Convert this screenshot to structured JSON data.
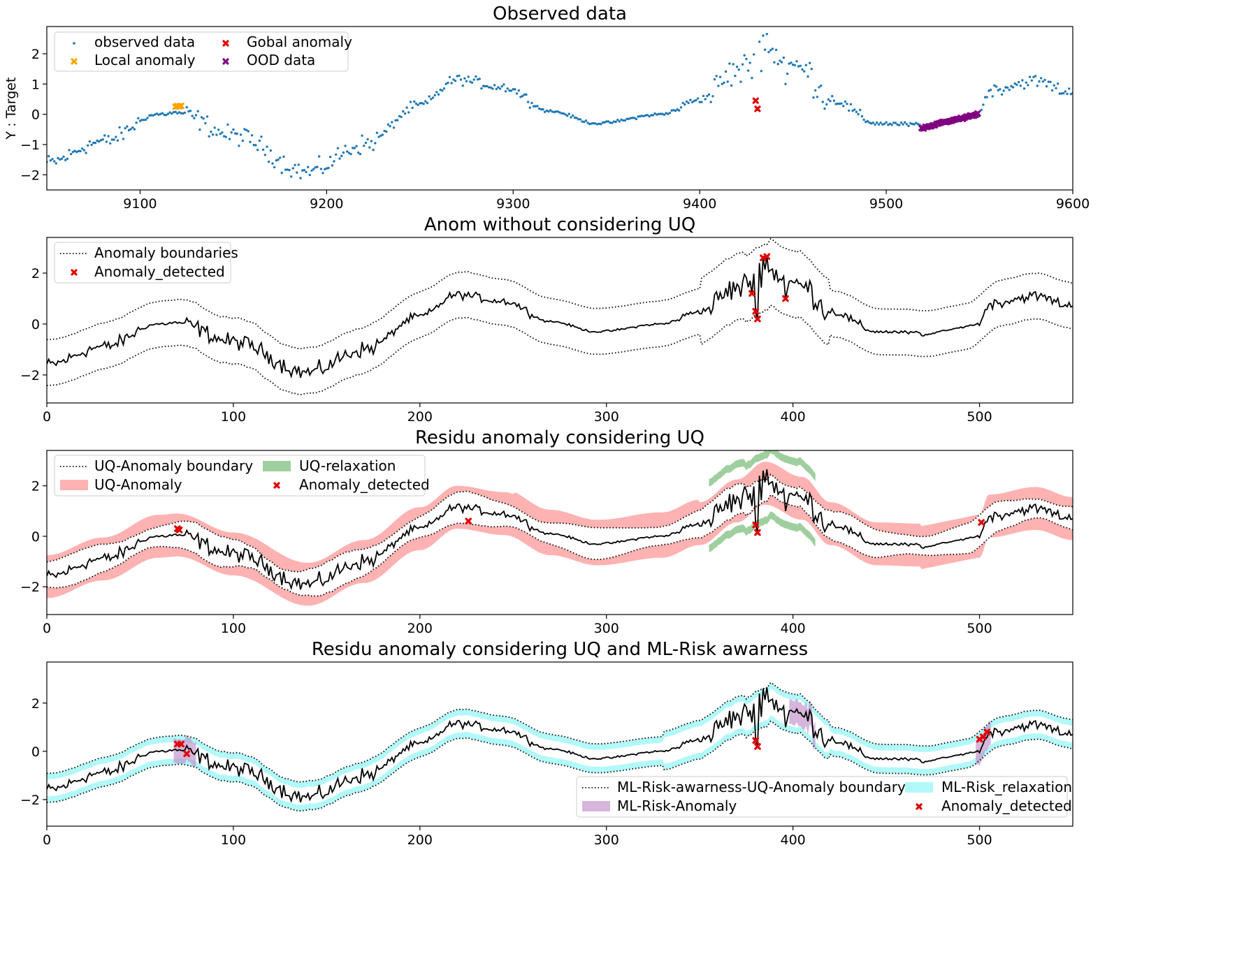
{
  "chart_data": [
    {
      "type": "scatter",
      "title": "Observed data",
      "xlabel": "",
      "ylabel": "Y : Target",
      "xlim": [
        9050,
        9600
      ],
      "ylim": [
        -2.5,
        2.9
      ],
      "xticks": [
        9100,
        9200,
        9300,
        9400,
        9500,
        9600
      ],
      "yticks": [
        -2,
        -1,
        0,
        1,
        2
      ],
      "grid": false,
      "legend_position": "upper-left",
      "legend": [
        "observed data",
        "Local anomaly",
        "Gobal anomaly",
        "OOD data"
      ],
      "signal": "damped two-frequency wave: peaks ≈ 0 at x≈9115, 1.2 at x≈9270, 2.1 at x≈9425, 0.8 at x≈9585; troughs ≈ -1.8 at x≈9190, -0.3 at x≈9345, -0.4 at x≈9515",
      "series": [
        {
          "name": "observed data",
          "marker": "dot",
          "color": "#1f77b4",
          "x_range": [
            9050,
            9600
          ],
          "n_points": 550
        },
        {
          "name": "Local anomaly",
          "marker": "x",
          "color": "#ffa500",
          "points": [
            [
              9119,
              0.25
            ],
            [
              9120,
              0.27
            ],
            [
              9121,
              0.26
            ],
            [
              9122,
              0.28
            ]
          ]
        },
        {
          "name": "Gobal anomaly",
          "marker": "x",
          "color": "#e00000",
          "points": [
            [
              9430,
              0.45
            ],
            [
              9431,
              0.18
            ]
          ]
        },
        {
          "name": "OOD data",
          "marker": "x",
          "color": "#800080",
          "x_range": [
            9519,
            9549
          ],
          "y_range": [
            -0.45,
            0.0
          ]
        }
      ]
    },
    {
      "type": "line",
      "title": "Anom without considering UQ",
      "xlabel": "",
      "ylabel": "",
      "xlim": [
        0,
        550
      ],
      "ylim": [
        -3.1,
        3.4
      ],
      "xticks": [
        0,
        100,
        200,
        300,
        400,
        500
      ],
      "yticks": [
        -2,
        0,
        2
      ],
      "grid": false,
      "legend_position": "upper-left",
      "legend": [
        "Anomaly boundaries",
        "Anomaly_detected"
      ],
      "series": [
        {
          "name": "signal",
          "color": "#000000",
          "style": "solid"
        },
        {
          "name": "Anomaly boundaries",
          "color": "#000000",
          "style": "dotted",
          "offset": 0.9
        },
        {
          "name": "Anomaly_detected",
          "marker": "x",
          "color": "#e00000",
          "points": [
            [
              378,
              1.2
            ],
            [
              380,
              0.5
            ],
            [
              381,
              0.2
            ],
            [
              384,
              2.6
            ],
            [
              386,
              2.65
            ],
            [
              396,
              1.0
            ]
          ]
        }
      ]
    },
    {
      "type": "area",
      "title": "Residu anomaly considering UQ",
      "xlabel": "",
      "ylabel": "",
      "xlim": [
        0,
        550
      ],
      "ylim": [
        -3.1,
        3.4
      ],
      "xticks": [
        0,
        100,
        200,
        300,
        400,
        500
      ],
      "yticks": [
        -2,
        0,
        2
      ],
      "grid": false,
      "legend_position": "upper-left",
      "legend": [
        "UQ-Anomaly boundary",
        "UQ-Anomaly",
        "UQ-relaxation",
        "Anomaly_detected"
      ],
      "series": [
        {
          "name": "signal",
          "color": "#000000",
          "style": "solid"
        },
        {
          "name": "UQ-Anomaly boundary",
          "color": "#000000",
          "style": "dotted"
        },
        {
          "name": "UQ-Anomaly",
          "color": "#ff7f7f",
          "fill": true
        },
        {
          "name": "UQ-relaxation",
          "color": "#7fbf7f",
          "fill": true
        },
        {
          "name": "Anomaly_detected",
          "marker": "x",
          "color": "#e00000",
          "points": [
            [
              70,
              0.3
            ],
            [
              71,
              0.25
            ],
            [
              226,
              0.6
            ],
            [
              380,
              0.45
            ],
            [
              381,
              0.15
            ],
            [
              501,
              0.55
            ]
          ]
        }
      ]
    },
    {
      "type": "area",
      "title": "Residu anomaly considering UQ and ML-Risk awarness",
      "xlabel": "",
      "ylabel": "",
      "xlim": [
        0,
        550
      ],
      "ylim": [
        -3.1,
        3.7
      ],
      "xticks": [
        0,
        100,
        200,
        300,
        400,
        500
      ],
      "yticks": [
        -2,
        0,
        2
      ],
      "grid": false,
      "legend_position": "lower-right",
      "legend": [
        "ML-Risk-awarness-UQ-Anomaly boundary",
        "ML-Risk-Anomaly",
        "ML-Risk_relaxation",
        "Anomaly_detected"
      ],
      "series": [
        {
          "name": "signal",
          "color": "#000000",
          "style": "solid"
        },
        {
          "name": "ML-Risk-awarness-UQ-Anomaly boundary",
          "color": "#000000",
          "style": "dotted"
        },
        {
          "name": "ML-Risk-Anomaly",
          "color": "#c08fc8",
          "fill": true
        },
        {
          "name": "ML-Risk_relaxation",
          "color": "#7ff5f5",
          "fill": true
        },
        {
          "name": "Anomaly_detected",
          "marker": "x",
          "color": "#e00000",
          "points": [
            [
              70,
              0.3
            ],
            [
              72,
              0.3
            ],
            [
              75,
              -0.1
            ],
            [
              380,
              0.45
            ],
            [
              381,
              0.2
            ],
            [
              500,
              0.5
            ],
            [
              502,
              0.6
            ],
            [
              504,
              0.8
            ]
          ]
        }
      ]
    }
  ]
}
